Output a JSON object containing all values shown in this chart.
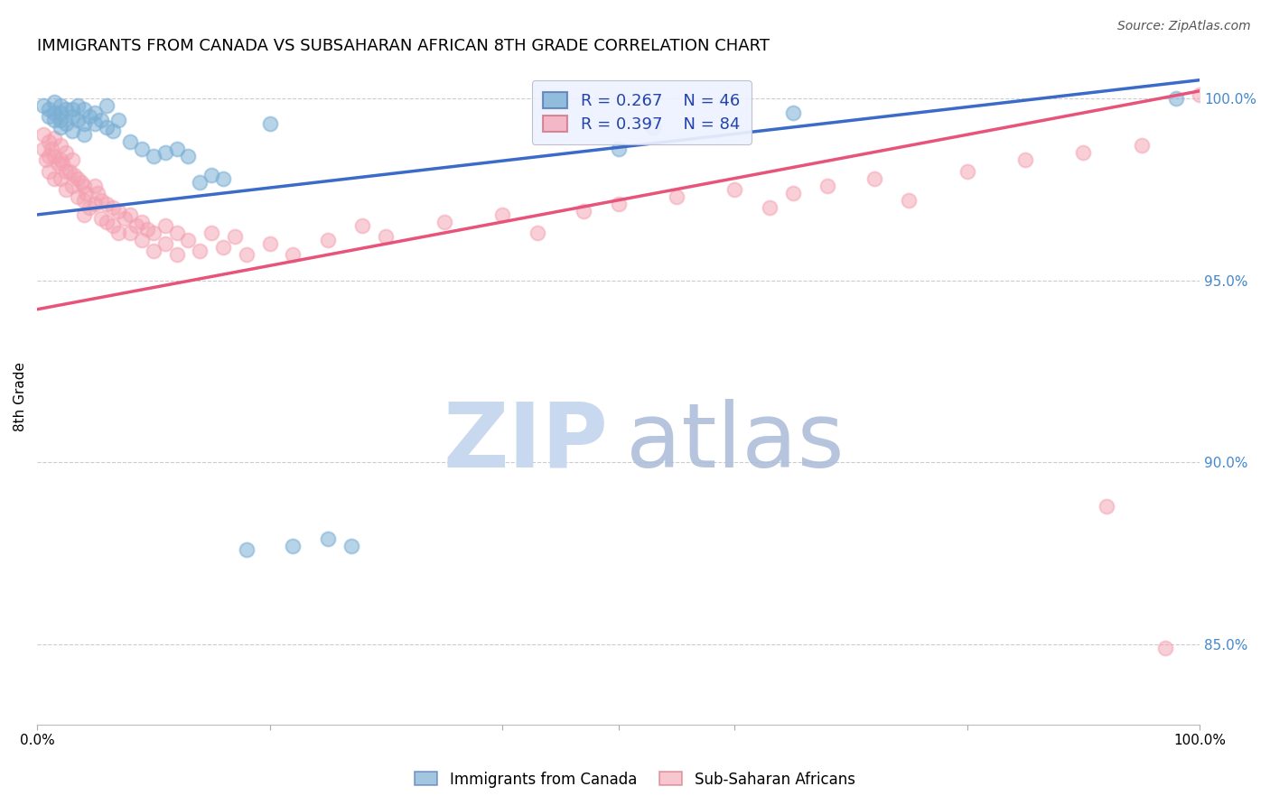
{
  "title": "IMMIGRANTS FROM CANADA VS SUBSAHARAN AFRICAN 8TH GRADE CORRELATION CHART",
  "source": "Source: ZipAtlas.com",
  "ylabel": "8th Grade",
  "xlim": [
    0.0,
    1.0
  ],
  "ylim": [
    0.828,
    1.008
  ],
  "yticks": [
    0.85,
    0.9,
    0.95,
    1.0
  ],
  "ytick_labels": [
    "85.0%",
    "90.0%",
    "95.0%",
    "100.0%"
  ],
  "blue_R": 0.267,
  "blue_N": 46,
  "pink_R": 0.397,
  "pink_N": 84,
  "blue_color": "#7BAFD4",
  "pink_color": "#F4A0B0",
  "blue_line_color": "#3B6BC8",
  "pink_line_color": "#E8537A",
  "blue_scatter_x": [
    0.005,
    0.01,
    0.01,
    0.015,
    0.015,
    0.015,
    0.02,
    0.02,
    0.02,
    0.02,
    0.025,
    0.025,
    0.03,
    0.03,
    0.03,
    0.035,
    0.035,
    0.04,
    0.04,
    0.04,
    0.045,
    0.05,
    0.05,
    0.055,
    0.06,
    0.06,
    0.065,
    0.07,
    0.08,
    0.09,
    0.1,
    0.11,
    0.12,
    0.13,
    0.14,
    0.15,
    0.16,
    0.18,
    0.2,
    0.22,
    0.25,
    0.27,
    0.5,
    0.53,
    0.65,
    0.98
  ],
  "blue_scatter_y": [
    0.998,
    0.997,
    0.995,
    0.999,
    0.996,
    0.994,
    0.998,
    0.996,
    0.994,
    0.992,
    0.997,
    0.993,
    0.997,
    0.995,
    0.991,
    0.998,
    0.994,
    0.997,
    0.993,
    0.99,
    0.995,
    0.996,
    0.993,
    0.994,
    0.998,
    0.992,
    0.991,
    0.994,
    0.988,
    0.986,
    0.984,
    0.985,
    0.986,
    0.984,
    0.977,
    0.979,
    0.978,
    0.876,
    0.993,
    0.877,
    0.879,
    0.877,
    0.986,
    0.992,
    0.996,
    1.0
  ],
  "pink_scatter_x": [
    0.005,
    0.005,
    0.008,
    0.01,
    0.01,
    0.01,
    0.012,
    0.015,
    0.015,
    0.015,
    0.018,
    0.02,
    0.02,
    0.02,
    0.022,
    0.025,
    0.025,
    0.025,
    0.028,
    0.03,
    0.03,
    0.032,
    0.035,
    0.035,
    0.038,
    0.04,
    0.04,
    0.04,
    0.042,
    0.045,
    0.05,
    0.05,
    0.052,
    0.055,
    0.055,
    0.06,
    0.06,
    0.065,
    0.065,
    0.07,
    0.07,
    0.075,
    0.08,
    0.08,
    0.085,
    0.09,
    0.09,
    0.095,
    0.1,
    0.1,
    0.11,
    0.11,
    0.12,
    0.12,
    0.13,
    0.14,
    0.15,
    0.16,
    0.17,
    0.18,
    0.2,
    0.22,
    0.25,
    0.28,
    0.3,
    0.35,
    0.4,
    0.43,
    0.47,
    0.5,
    0.55,
    0.6,
    0.63,
    0.65,
    0.68,
    0.72,
    0.75,
    0.8,
    0.85,
    0.9,
    0.92,
    0.95,
    0.97,
    1.0
  ],
  "pink_scatter_y": [
    0.99,
    0.986,
    0.983,
    0.988,
    0.984,
    0.98,
    0.986,
    0.989,
    0.984,
    0.978,
    0.982,
    0.987,
    0.983,
    0.978,
    0.982,
    0.985,
    0.98,
    0.975,
    0.98,
    0.983,
    0.976,
    0.979,
    0.978,
    0.973,
    0.977,
    0.976,
    0.972,
    0.968,
    0.974,
    0.97,
    0.976,
    0.971,
    0.974,
    0.972,
    0.967,
    0.971,
    0.966,
    0.97,
    0.965,
    0.969,
    0.963,
    0.967,
    0.968,
    0.963,
    0.965,
    0.966,
    0.961,
    0.964,
    0.963,
    0.958,
    0.965,
    0.96,
    0.963,
    0.957,
    0.961,
    0.958,
    0.963,
    0.959,
    0.962,
    0.957,
    0.96,
    0.957,
    0.961,
    0.965,
    0.962,
    0.966,
    0.968,
    0.963,
    0.969,
    0.971,
    0.973,
    0.975,
    0.97,
    0.974,
    0.976,
    0.978,
    0.972,
    0.98,
    0.983,
    0.985,
    0.888,
    0.987,
    0.849,
    1.001
  ]
}
